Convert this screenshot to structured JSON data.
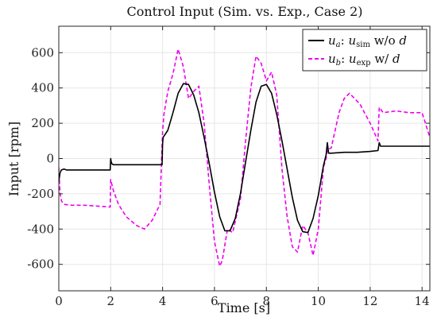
{
  "chart_data": {
    "type": "line",
    "title": "Control Input (Sim. vs. Exp., Case 2)",
    "xlabel": "Time [s]",
    "ylabel": "Input [rpm]",
    "xlim": [
      0,
      14.3
    ],
    "ylim": [
      -750,
      750
    ],
    "xticks": [
      0,
      2,
      4,
      6,
      8,
      10,
      12,
      14
    ],
    "yticks": [
      -600,
      -400,
      -200,
      0,
      200,
      400,
      600
    ],
    "xtick_labels": [
      "0",
      "2",
      "4",
      "6",
      "8",
      "10",
      "12",
      "14"
    ],
    "ytick_labels": [
      "-600",
      "-400",
      "-200",
      "0",
      "200",
      "400",
      "600"
    ],
    "grid": true,
    "legend_position": "top-right",
    "legend": [
      {
        "main": "u",
        "sub": "a",
        "sep": ": ",
        "main2": "u",
        "sub2": "sim",
        "tail": " w/o ",
        "var": "d"
      },
      {
        "main": "u",
        "sub": "b",
        "sep": ": ",
        "main2": "u",
        "sub2": "exp",
        "tail": " w/ ",
        "var": "d"
      }
    ],
    "series": [
      {
        "name": "u_a: u_sim w/o d",
        "color": "#000000",
        "style": "solid",
        "x": [
          0,
          0.05,
          0.1,
          0.2,
          0.3,
          0.5,
          1.0,
          1.5,
          1.98,
          2.0,
          2.02,
          2.05,
          2.1,
          2.3,
          3.0,
          3.5,
          3.98,
          4.0,
          4.02,
          4.2,
          4.4,
          4.6,
          4.8,
          5.0,
          5.2,
          5.4,
          5.6,
          5.8,
          6.0,
          6.2,
          6.4,
          6.6,
          6.8,
          7.0,
          7.2,
          7.4,
          7.6,
          7.8,
          8.0,
          8.2,
          8.4,
          8.6,
          8.8,
          9.0,
          9.2,
          9.4,
          9.6,
          9.8,
          10.0,
          10.2,
          10.3,
          10.35,
          10.4,
          10.5,
          11.0,
          11.5,
          12.0,
          12.3,
          12.35,
          12.4,
          12.5,
          13.0,
          14.0,
          14.3
        ],
        "values": [
          -130,
          -80,
          -65,
          -60,
          -65,
          -65,
          -65,
          -65,
          -65,
          0,
          -20,
          -30,
          -35,
          -35,
          -35,
          -35,
          -35,
          80,
          120,
          160,
          260,
          370,
          425,
          420,
          360,
          260,
          120,
          -30,
          -190,
          -330,
          -410,
          -410,
          -340,
          -200,
          -20,
          160,
          320,
          410,
          420,
          370,
          250,
          100,
          -60,
          -220,
          -350,
          -415,
          -420,
          -340,
          -210,
          -40,
          20,
          90,
          30,
          30,
          35,
          35,
          40,
          45,
          90,
          70,
          70,
          70,
          70,
          70
        ]
      },
      {
        "name": "u_b: u_exp w/ d",
        "color": "#ee00ee",
        "style": "dashed",
        "x": [
          0,
          0.05,
          0.1,
          0.2,
          0.5,
          1.0,
          1.5,
          1.98,
          2.0,
          2.1,
          2.3,
          2.6,
          3.0,
          3.3,
          3.6,
          3.9,
          4.0,
          4.05,
          4.2,
          4.4,
          4.6,
          4.8,
          5.0,
          5.2,
          5.4,
          5.6,
          5.8,
          6.0,
          6.2,
          6.3,
          6.5,
          6.7,
          7.0,
          7.2,
          7.4,
          7.6,
          7.8,
          8.0,
          8.2,
          8.4,
          8.6,
          8.8,
          9.0,
          9.2,
          9.4,
          9.6,
          9.8,
          10.0,
          10.2,
          10.3,
          10.35,
          10.5,
          10.8,
          11.0,
          11.2,
          11.6,
          12.0,
          12.3,
          12.35,
          12.5,
          13.0,
          13.5,
          14.0,
          14.3
        ],
        "values": [
          -50,
          -200,
          -240,
          -260,
          -265,
          -265,
          -270,
          -275,
          -120,
          -180,
          -260,
          -330,
          -380,
          -400,
          -350,
          -260,
          150,
          250,
          380,
          480,
          620,
          520,
          340,
          380,
          410,
          200,
          -150,
          -470,
          -610,
          -580,
          -400,
          -420,
          -230,
          100,
          400,
          580,
          540,
          440,
          490,
          360,
          -60,
          -330,
          -500,
          -530,
          -380,
          -420,
          -550,
          -400,
          -50,
          0,
          50,
          60,
          260,
          340,
          370,
          310,
          200,
          100,
          290,
          260,
          270,
          260,
          260,
          120
        ]
      }
    ]
  }
}
